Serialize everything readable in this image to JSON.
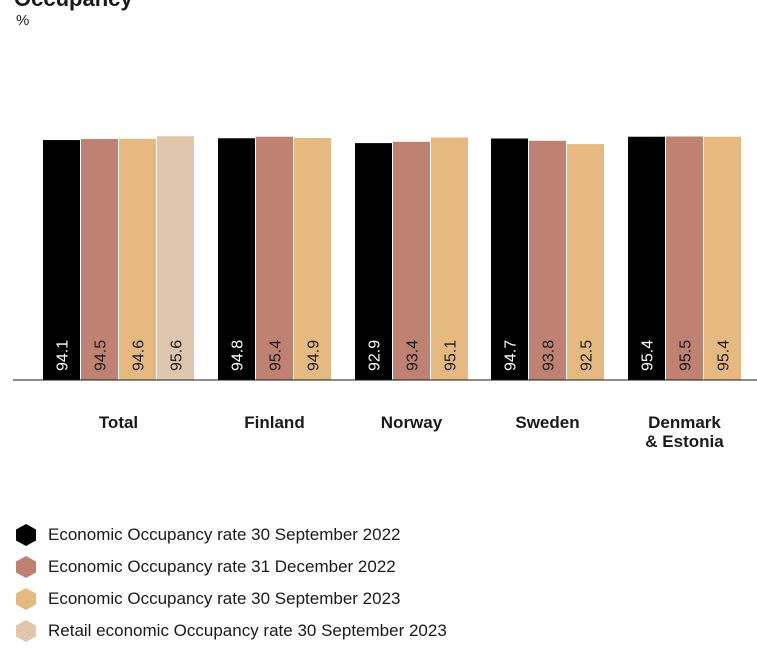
{
  "title": "Occupancy",
  "unit": "%",
  "chart_data": {
    "type": "bar",
    "categories": [
      "Total",
      "Finland",
      "Norway",
      "Sweden",
      "Denmark & Estonia"
    ],
    "category_lines": [
      [
        "Total"
      ],
      [
        "Finland"
      ],
      [
        "Norway"
      ],
      [
        "Sweden"
      ],
      [
        "Denmark",
        "& Estonia"
      ]
    ],
    "series": [
      {
        "name": "Economic Occupancy rate 30 September 2022",
        "color": "#000000",
        "values": [
          94.1,
          94.8,
          92.9,
          94.7,
          95.4
        ]
      },
      {
        "name": "Economic Occupancy rate 31 December 2022",
        "color": "#bf8172",
        "values": [
          94.5,
          95.4,
          93.4,
          93.8,
          95.5
        ]
      },
      {
        "name": "Economic Occupancy rate 30 September 2023",
        "color": "#e6b980",
        "values": [
          94.6,
          94.9,
          95.1,
          92.5,
          95.4
        ]
      },
      {
        "name": "Retail economic Occupancy rate 30 September 2023",
        "color": "#dfc6ad",
        "values": [
          95.6,
          null,
          null,
          null,
          null
        ]
      }
    ],
    "ylim": [
      0,
      100
    ],
    "grid": false,
    "data_labels": "inside-bar-bottom-rotated",
    "legend_position": "bottom"
  }
}
